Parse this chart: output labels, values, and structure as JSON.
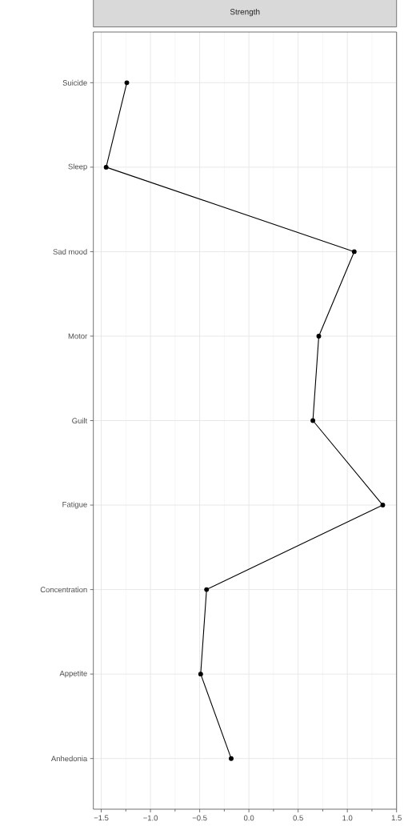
{
  "chart_data": {
    "type": "line",
    "title": "Strength",
    "orientation": "horizontal",
    "categories": [
      "Suicide",
      "Sleep",
      "Sad mood",
      "Motor",
      "Guilt",
      "Fatigue",
      "Concentration",
      "Appetite",
      "Anhedonia"
    ],
    "values": [
      -1.24,
      -1.45,
      1.07,
      0.71,
      0.65,
      1.36,
      -0.43,
      -0.49,
      -0.18
    ],
    "color": "#000000",
    "marker": "circle",
    "line_style": "solid",
    "grid": true,
    "xlim": [
      -1.58,
      1.5
    ],
    "xticks": [
      {
        "value": -1.5,
        "label": "−1.5"
      },
      {
        "value": -1.0,
        "label": "−1.0"
      },
      {
        "value": -0.5,
        "label": "−0.5"
      },
      {
        "value": 0.0,
        "label": "0.0"
      },
      {
        "value": 0.5,
        "label": "0.5"
      },
      {
        "value": 1.0,
        "label": "1.0"
      },
      {
        "value": 1.5,
        "label": "1.5"
      }
    ]
  }
}
